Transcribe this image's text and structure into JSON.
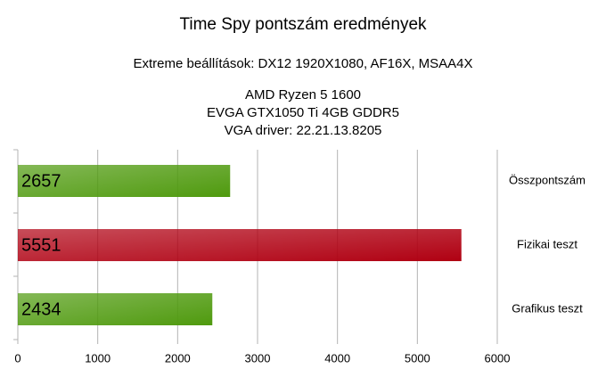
{
  "chart_data": {
    "type": "barh",
    "title": "Time Spy pontszám eredmények",
    "subtitle": [
      "Extreme beállítások: DX12 1920X1080, AF16X, MSAA4X",
      "AMD Ryzen 5 1600",
      "EVGA GTX1050 Ti 4GB GDDR5",
      "VGA driver: 22.21.13.8205"
    ],
    "categories": [
      "Összpontszám",
      "Fizikai teszt",
      "Grafikus teszt"
    ],
    "values": [
      2657,
      5551,
      2434
    ],
    "colors": [
      "#4f9a0e",
      "#b00012",
      "#4f9a0e"
    ],
    "xlim": [
      0,
      6000
    ],
    "xticks": [
      0,
      1000,
      2000,
      3000,
      4000,
      5000,
      6000
    ],
    "grid": true
  }
}
